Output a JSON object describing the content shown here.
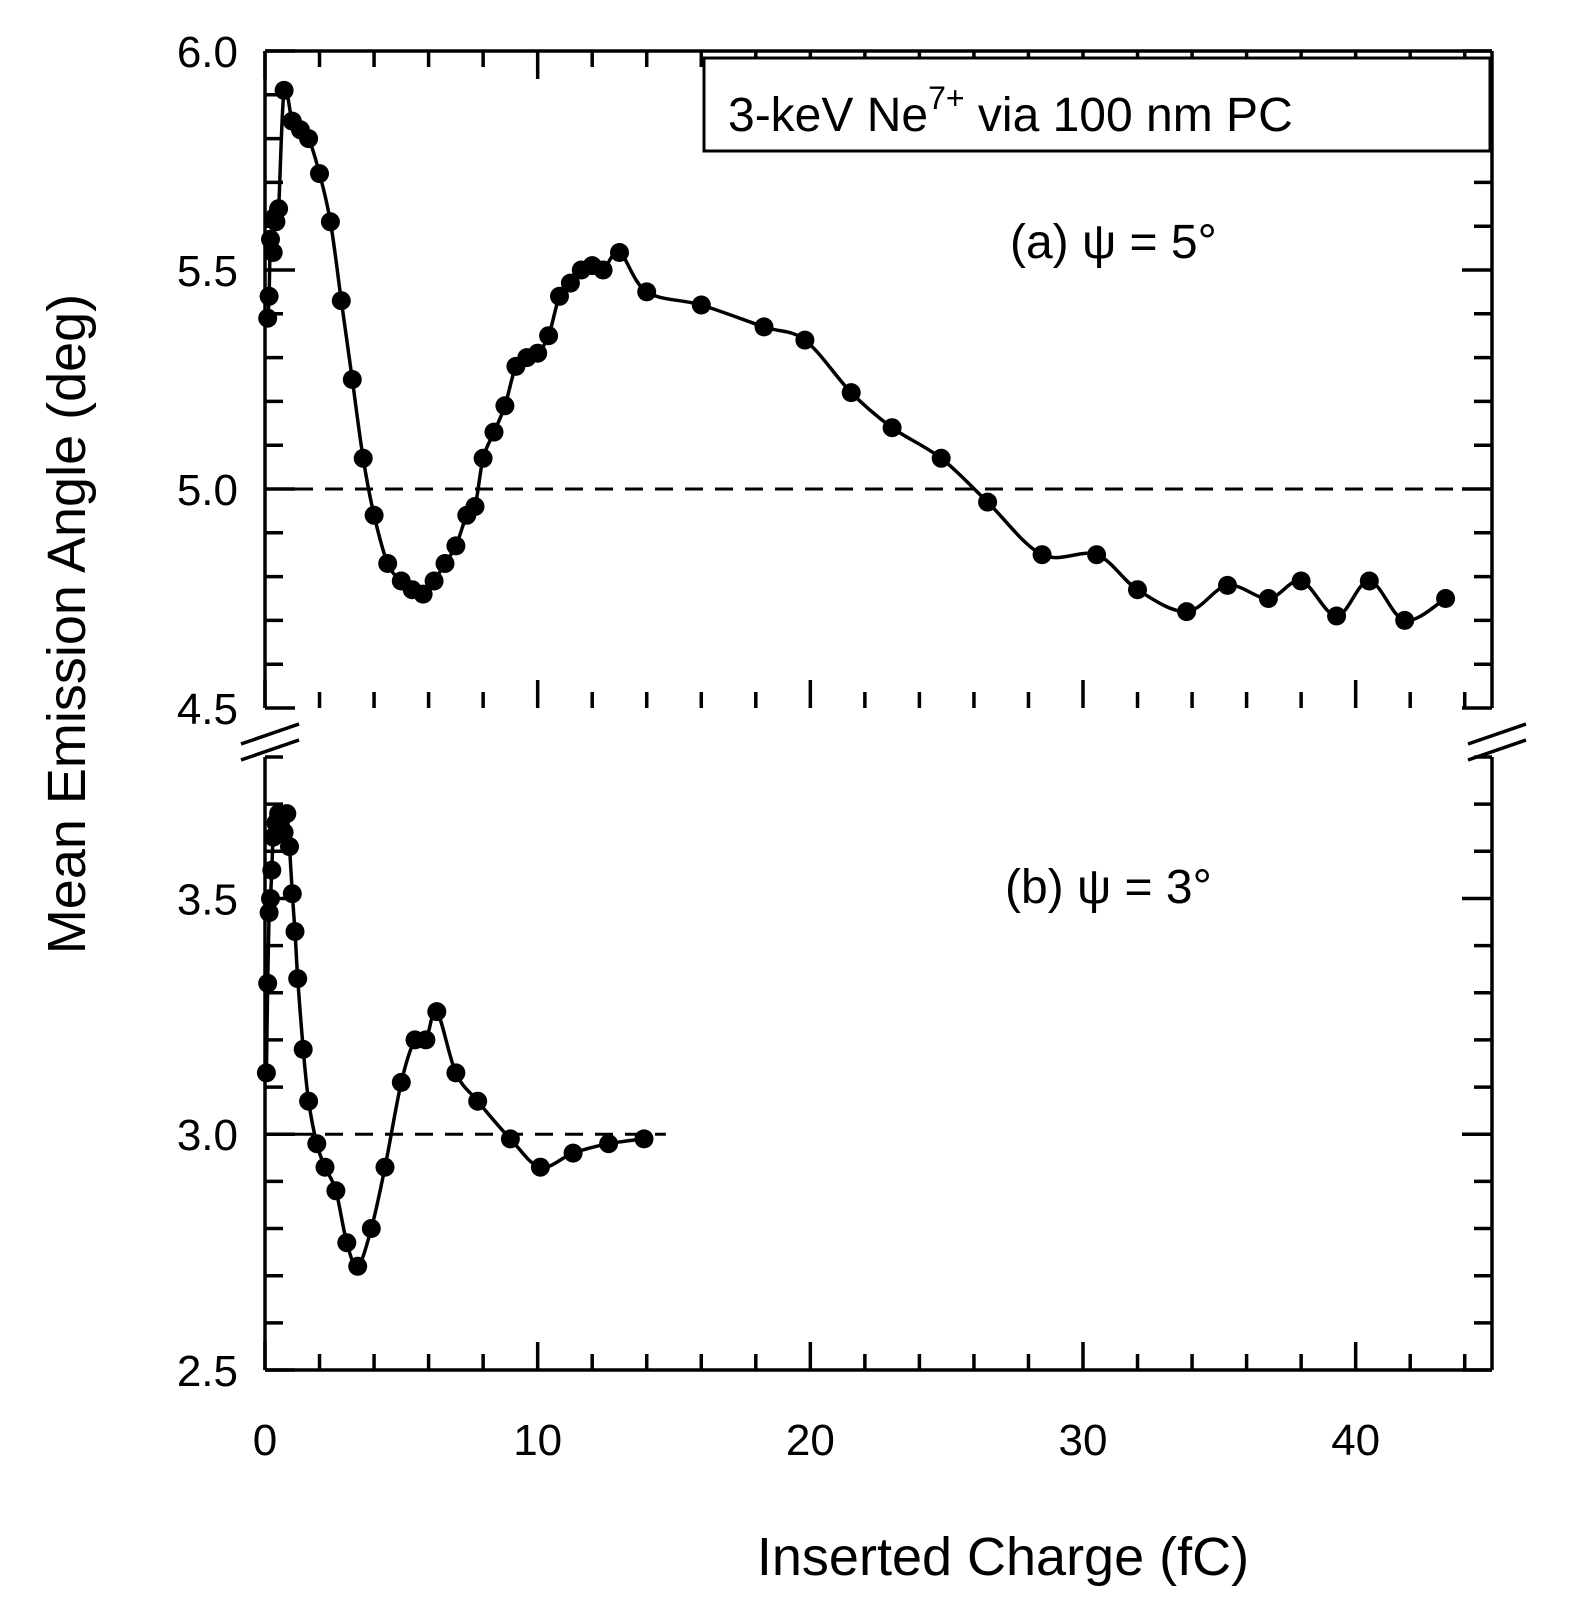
{
  "chart_data": {
    "type": "scatter",
    "legend_box": {
      "text": "3-keV Ne",
      "superscript": "7+",
      "suffix": " via 100 nm PC",
      "placement": "top-right"
    },
    "xlabel": "Inserted Charge (fC)",
    "ylabel": "Mean Emission Angle (deg)",
    "xlim": [
      0,
      45
    ],
    "x_ticks": [
      0,
      10,
      20,
      30,
      40
    ],
    "x_tick_labels": [
      "0",
      "10",
      "20",
      "30",
      "40"
    ],
    "grid": false,
    "axis_break": true,
    "panels": [
      {
        "label": "(a)  ψ = 5°",
        "ylim": [
          4.5,
          6.0
        ],
        "y_ticks": [
          4.5,
          5.0,
          5.5,
          6.0
        ],
        "y_tick_labels": [
          "4.5",
          "5.0",
          "5.5",
          "6.0"
        ],
        "reference_line": 5.0,
        "series": [
          {
            "marker": "filled-circle",
            "fit_line": "smooth",
            "x": [
              0.1,
              0.15,
              0.2,
              0.3,
              0.35,
              0.4,
              0.5,
              0.7,
              1.0,
              1.3,
              1.6,
              2.0,
              2.4,
              2.8,
              3.2,
              3.6,
              4.0,
              4.5,
              5.0,
              5.4,
              5.8,
              6.2,
              6.6,
              7.0,
              7.4,
              7.7,
              8.0,
              8.4,
              8.8,
              9.2,
              9.6,
              10.0,
              10.4,
              10.8,
              11.2,
              11.6,
              12.0,
              12.4,
              13.0,
              14.0,
              16.0,
              18.3,
              19.8,
              21.5,
              23.0,
              24.8,
              26.5,
              28.5,
              30.5,
              32.0,
              33.8,
              35.3,
              36.8,
              38.0,
              39.3,
              40.5,
              41.8,
              43.3
            ],
            "y": [
              5.39,
              5.44,
              5.57,
              5.54,
              5.62,
              5.61,
              5.64,
              5.91,
              5.84,
              5.82,
              5.8,
              5.72,
              5.61,
              5.43,
              5.25,
              5.07,
              4.94,
              4.83,
              4.79,
              4.77,
              4.76,
              4.79,
              4.83,
              4.87,
              4.94,
              4.96,
              5.07,
              5.13,
              5.19,
              5.28,
              5.3,
              5.31,
              5.35,
              5.44,
              5.47,
              5.5,
              5.51,
              5.5,
              5.54,
              5.45,
              5.42,
              5.37,
              5.34,
              5.22,
              5.14,
              5.07,
              4.97,
              4.85,
              4.85,
              4.77,
              4.72,
              4.78,
              4.75,
              4.79,
              4.71,
              4.79,
              4.7,
              4.75
            ]
          }
        ]
      },
      {
        "label": "(b)  ψ = 3°",
        "ylim": [
          2.5,
          3.8
        ],
        "y_ticks": [
          2.5,
          3.0,
          3.5
        ],
        "y_tick_labels": [
          "2.5",
          "3.0",
          "3.5"
        ],
        "reference_line": 3.0,
        "series": [
          {
            "marker": "filled-circle",
            "fit_line": "smooth",
            "x": [
              0.05,
              0.1,
              0.15,
              0.2,
              0.25,
              0.3,
              0.4,
              0.5,
              0.6,
              0.7,
              0.8,
              0.9,
              1.0,
              1.1,
              1.2,
              1.4,
              1.6,
              1.9,
              2.2,
              2.6,
              3.0,
              3.4,
              3.9,
              4.4,
              5.0,
              5.5,
              5.9,
              6.3,
              7.0,
              7.8,
              9.0,
              10.1,
              11.3,
              12.6,
              13.9
            ],
            "y": [
              3.13,
              3.32,
              3.47,
              3.5,
              3.56,
              3.63,
              3.66,
              3.68,
              3.67,
              3.64,
              3.68,
              3.61,
              3.51,
              3.43,
              3.33,
              3.18,
              3.07,
              2.98,
              2.93,
              2.88,
              2.77,
              2.72,
              2.8,
              2.93,
              3.11,
              3.2,
              3.2,
              3.26,
              3.13,
              3.07,
              2.99,
              2.93,
              2.96,
              2.98,
              2.99
            ]
          }
        ]
      }
    ]
  }
}
